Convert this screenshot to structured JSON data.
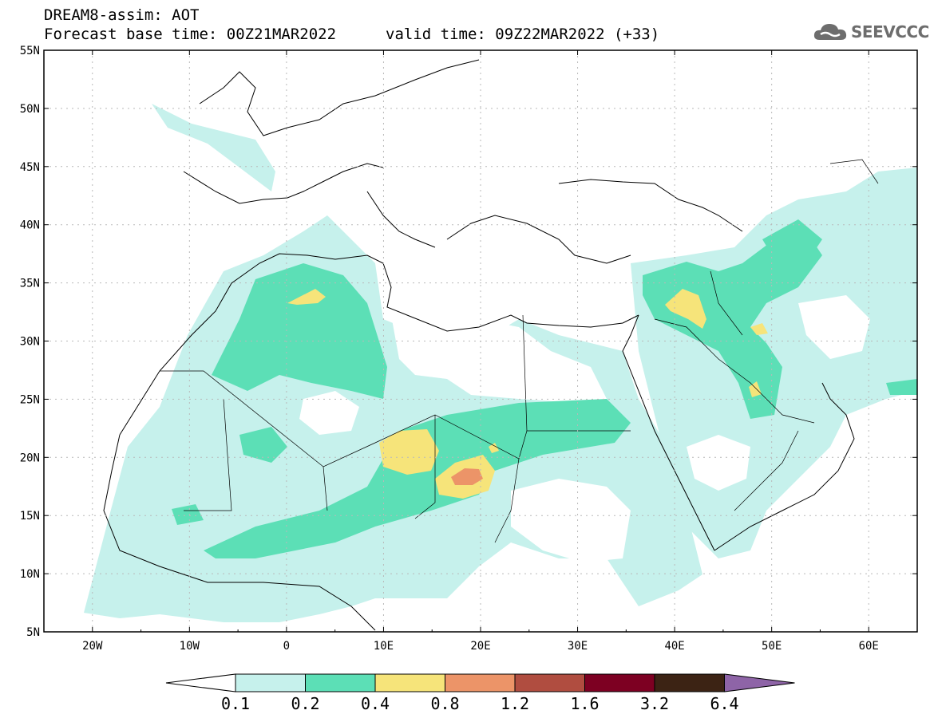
{
  "header": {
    "model": "DREAM8-assim: AOT",
    "base_time": "Forecast base time: 00Z21MAR2022",
    "valid_time": "valid time: 09Z22MAR2022 (+33)"
  },
  "logo": {
    "text": "SEEVCCC",
    "icon": "cloud-icon"
  },
  "axes": {
    "lat_labels": [
      "55N",
      "50N",
      "45N",
      "40N",
      "35N",
      "30N",
      "25N",
      "20N",
      "15N",
      "10N",
      "5N"
    ],
    "lon_labels": [
      "20W",
      "10W",
      "0",
      "10E",
      "20E",
      "30E",
      "40E",
      "50E",
      "60E"
    ],
    "lon_range": [
      -25,
      65
    ],
    "lat_range": [
      5,
      55
    ],
    "grid": "dotted"
  },
  "legend": {
    "labels": [
      "0.1",
      "0.2",
      "0.4",
      "0.8",
      "1.2",
      "1.6",
      "3.2",
      "6.4"
    ],
    "colors": [
      "#c6f1ec",
      "#5cdfb6",
      "#f6e47a",
      "#ec9468",
      "#b04d40",
      "#7d0022",
      "#3c2314",
      "#8e64a7"
    ]
  }
}
